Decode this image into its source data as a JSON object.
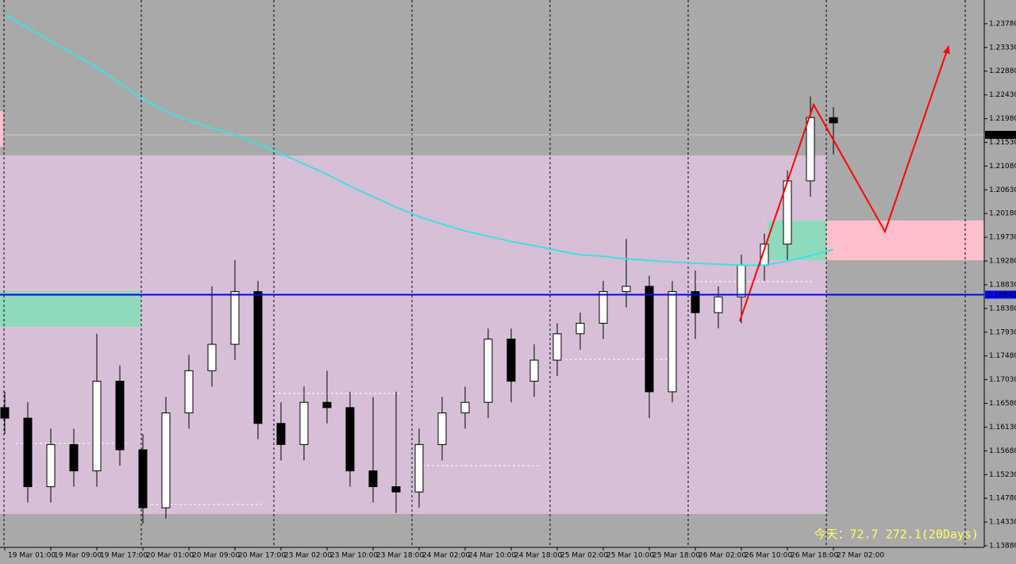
{
  "chart_data": {
    "type": "candlestick",
    "ylim": [
      1.1385,
      1.2423
    ],
    "yticks": [
      {
        "value": 1.2378,
        "label": "1.23780"
      },
      {
        "value": 1.2333,
        "label": "1.23330"
      },
      {
        "value": 1.2288,
        "label": "1.22880"
      },
      {
        "value": 1.2243,
        "label": "1.22430"
      },
      {
        "value": 1.2198,
        "label": "1.21980"
      },
      {
        "value": 1.2153,
        "label": "1.21530"
      },
      {
        "value": 1.2108,
        "label": "1.21080"
      },
      {
        "value": 1.2063,
        "label": "1.20630"
      },
      {
        "value": 1.2018,
        "label": "1.20180"
      },
      {
        "value": 1.1973,
        "label": "1.19730"
      },
      {
        "value": 1.1928,
        "label": "1.19280"
      },
      {
        "value": 1.1883,
        "label": "1.18830"
      },
      {
        "value": 1.1838,
        "label": "1.18380"
      },
      {
        "value": 1.1793,
        "label": "1.17930"
      },
      {
        "value": 1.1748,
        "label": "1.17480"
      },
      {
        "value": 1.1703,
        "label": "1.17030"
      },
      {
        "value": 1.1658,
        "label": "1.16580"
      },
      {
        "value": 1.1613,
        "label": "1.16130"
      },
      {
        "value": 1.1568,
        "label": "1.15680"
      },
      {
        "value": 1.1523,
        "label": "1.15230"
      },
      {
        "value": 1.1478,
        "label": "1.14780"
      },
      {
        "value": 1.1433,
        "label": "1.14330"
      },
      {
        "value": 1.1388,
        "label": "1.13880"
      }
    ],
    "x_labels": [
      "19 Mar 01:00",
      "19 Mar 09:00",
      "19 Mar 17:00",
      "20 Mar 01:00",
      "20 Mar 09:00",
      "20 Mar 17:00",
      "23 Mar 02:00",
      "23 Mar 10:00",
      "23 Mar 18:00",
      "24 Mar 02:00",
      "24 Mar 10:00",
      "24 Mar 18:00",
      "25 Mar 02:00",
      "25 Mar 10:00",
      "25 Mar 18:00",
      "26 Mar 02:00",
      "26 Mar 10:00",
      "26 Mar 18:00",
      "27 Mar 02:00"
    ],
    "open": [
      1.165,
      1.163,
      1.15,
      1.158,
      1.153,
      1.17,
      1.157,
      1.146,
      1.164,
      1.172,
      1.177,
      1.187,
      1.162,
      1.158,
      1.166,
      1.165,
      1.153,
      1.15,
      1.149,
      1.158,
      1.164,
      1.166,
      1.178,
      1.17,
      1.174,
      1.179,
      1.181,
      1.187,
      1.188,
      1.168,
      1.187,
      1.183,
      1.186,
      1.192,
      1.196,
      1.208,
      1.22
    ],
    "high": [
      1.168,
      1.166,
      1.161,
      1.161,
      1.179,
      1.173,
      1.16,
      1.167,
      1.175,
      1.188,
      1.193,
      1.189,
      1.166,
      1.169,
      1.172,
      1.168,
      1.167,
      1.168,
      1.161,
      1.167,
      1.169,
      1.18,
      1.18,
      1.177,
      1.181,
      1.183,
      1.189,
      1.197,
      1.19,
      1.189,
      1.191,
      1.188,
      1.194,
      1.198,
      1.21,
      1.224,
      1.222
    ],
    "low": [
      1.16,
      1.147,
      1.147,
      1.15,
      1.15,
      1.154,
      1.143,
      1.144,
      1.161,
      1.169,
      1.174,
      1.159,
      1.155,
      1.155,
      1.162,
      1.15,
      1.147,
      1.145,
      1.146,
      1.155,
      1.161,
      1.163,
      1.166,
      1.167,
      1.171,
      1.176,
      1.178,
      1.184,
      1.163,
      1.166,
      1.178,
      1.18,
      1.181,
      1.189,
      1.193,
      1.205,
      1.213
    ],
    "close": [
      1.163,
      1.15,
      1.158,
      1.153,
      1.17,
      1.157,
      1.146,
      1.164,
      1.172,
      1.177,
      1.187,
      1.162,
      1.158,
      1.166,
      1.165,
      1.153,
      1.15,
      1.149,
      1.158,
      1.164,
      1.166,
      1.178,
      1.17,
      1.174,
      1.179,
      1.181,
      1.187,
      1.188,
      1.168,
      1.187,
      1.183,
      1.186,
      1.192,
      1.196,
      1.208,
      1.22,
      1.219
    ],
    "ma": {
      "color": "#40e0e0",
      "values": [
        1.2395,
        1.237,
        1.2345,
        1.232,
        1.2295,
        1.2265,
        1.2235,
        1.2212,
        1.2195,
        1.218,
        1.2168,
        1.215,
        1.2132,
        1.2112,
        1.2092,
        1.207,
        1.205,
        1.203,
        1.2012,
        1.1998,
        1.1985,
        1.1975,
        1.1965,
        1.1957,
        1.1948,
        1.194,
        1.1937,
        1.1932,
        1.1929,
        1.1926,
        1.1924,
        1.1922,
        1.192,
        1.192,
        1.1928,
        1.1938,
        1.195
      ]
    },
    "current_price": 1.21673,
    "level_line": {
      "value": 1.18642,
      "color": "#0000ff"
    },
    "footer_text": "今天：72.7  272.1(20Days)"
  }
}
